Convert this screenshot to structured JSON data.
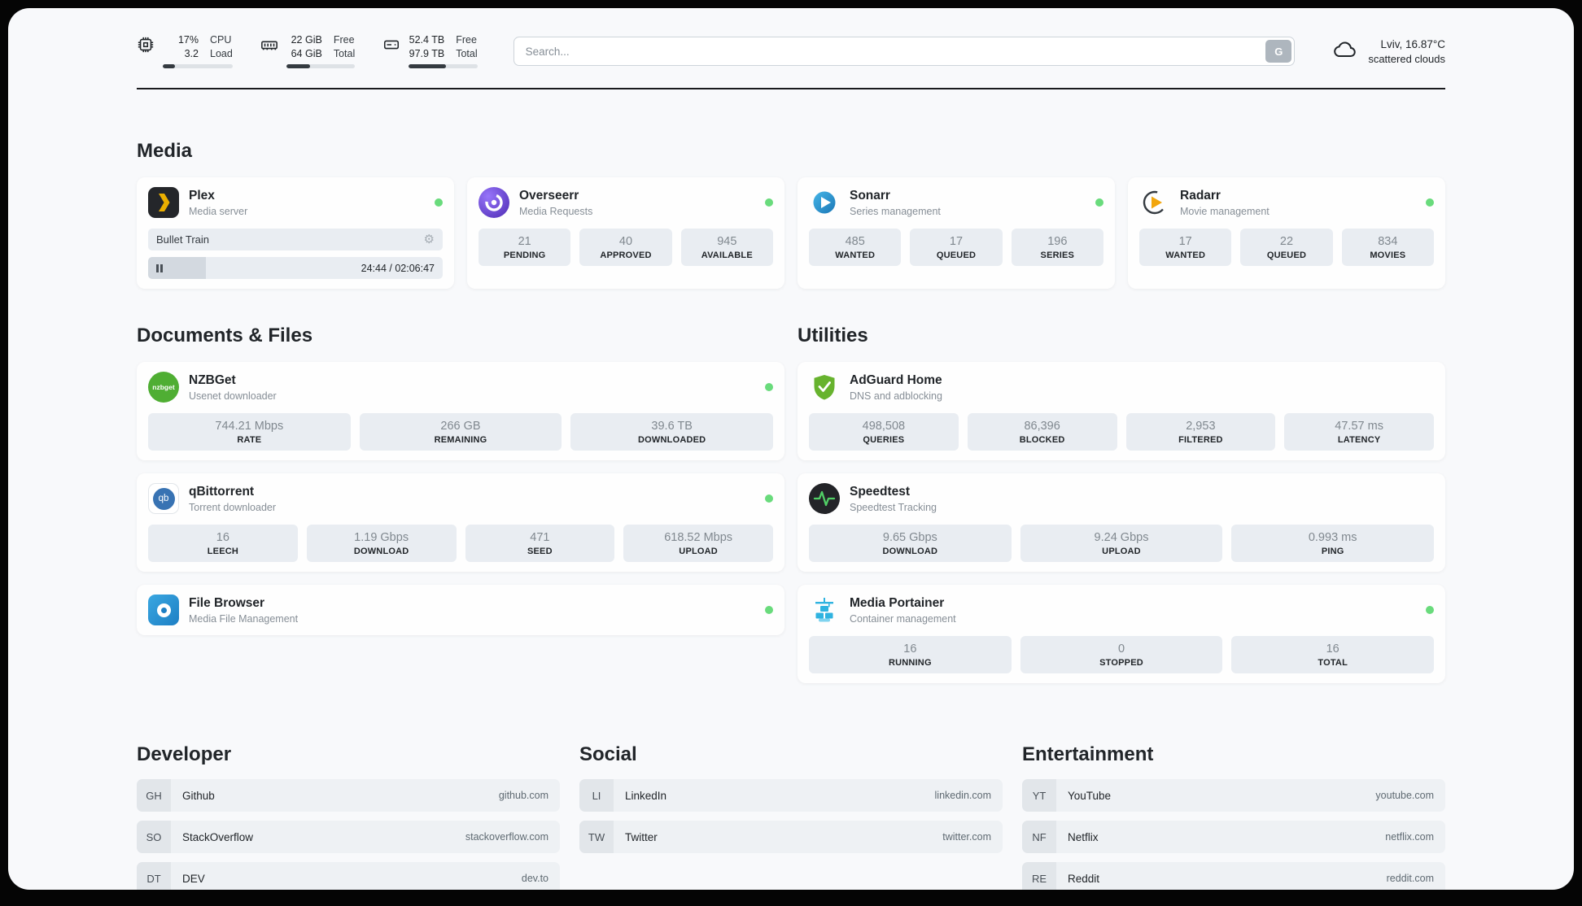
{
  "colors": {
    "status_online": "#69db7c",
    "accent_green": "#51cf66",
    "page_bg": "#f8f9fb",
    "stat_bg": "#e9edf2"
  },
  "topbar": {
    "metrics": [
      {
        "icon": "cpu-icon",
        "v1": "17%",
        "v2": "3.2",
        "l1": "CPU",
        "l2": "Load",
        "percent": 17
      },
      {
        "icon": "ram-icon",
        "v1": "22 GiB",
        "v2": "64 GiB",
        "l1": "Free",
        "l2": "Total",
        "percent": 34
      },
      {
        "icon": "disk-icon",
        "v1": "52.4 TB",
        "v2": "97.9 TB",
        "l1": "Free",
        "l2": "Total",
        "percent": 54
      }
    ],
    "search": {
      "placeholder": "Search...",
      "button_label": "G"
    },
    "weather": {
      "location": "Lviv, 16.87°C",
      "condition": "scattered clouds"
    }
  },
  "sections": {
    "media": {
      "title": "Media",
      "plex": {
        "name": "Plex",
        "desc": "Media server",
        "now_playing": "Bullet Train",
        "time": "24:44 / 02:06:47",
        "progress_percent": 19.5
      },
      "overseerr": {
        "name": "Overseerr",
        "desc": "Media Requests",
        "stats": [
          {
            "value": "21",
            "label": "PENDING"
          },
          {
            "value": "40",
            "label": "APPROVED"
          },
          {
            "value": "945",
            "label": "AVAILABLE"
          }
        ]
      },
      "sonarr": {
        "name": "Sonarr",
        "desc": "Series management",
        "stats": [
          {
            "value": "485",
            "label": "WANTED"
          },
          {
            "value": "17",
            "label": "QUEUED"
          },
          {
            "value": "196",
            "label": "SERIES"
          }
        ]
      },
      "radarr": {
        "name": "Radarr",
        "desc": "Movie management",
        "stats": [
          {
            "value": "17",
            "label": "WANTED"
          },
          {
            "value": "22",
            "label": "QUEUED"
          },
          {
            "value": "834",
            "label": "MOVIES"
          }
        ]
      }
    },
    "documents": {
      "title": "Documents & Files",
      "nzbget": {
        "name": "NZBGet",
        "desc": "Usenet downloader",
        "icon_text": "nzbget",
        "stats": [
          {
            "value": "744.21 Mbps",
            "label": "RATE"
          },
          {
            "value": "266 GB",
            "label": "REMAINING"
          },
          {
            "value": "39.6 TB",
            "label": "DOWNLOADED"
          }
        ]
      },
      "qbittorrent": {
        "name": "qBittorrent",
        "desc": "Torrent downloader",
        "icon_text": "qb",
        "stats": [
          {
            "value": "16",
            "label": "LEECH"
          },
          {
            "value": "1.19 Gbps",
            "label": "DOWNLOAD"
          },
          {
            "value": "471",
            "label": "SEED"
          },
          {
            "value": "618.52 Mbps",
            "label": "UPLOAD"
          }
        ]
      },
      "filebrowser": {
        "name": "File Browser",
        "desc": "Media File Management"
      }
    },
    "utilities": {
      "title": "Utilities",
      "adguard": {
        "name": "AdGuard Home",
        "desc": "DNS and adblocking",
        "stats": [
          {
            "value": "498,508",
            "label": "QUERIES"
          },
          {
            "value": "86,396",
            "label": "BLOCKED"
          },
          {
            "value": "2,953",
            "label": "FILTERED"
          },
          {
            "value": "47.57 ms",
            "label": "LATENCY"
          }
        ]
      },
      "speedtest": {
        "name": "Speedtest",
        "desc": "Speedtest Tracking",
        "stats": [
          {
            "value": "9.65 Gbps",
            "label": "DOWNLOAD"
          },
          {
            "value": "9.24 Gbps",
            "label": "UPLOAD"
          },
          {
            "value": "0.993 ms",
            "label": "PING"
          }
        ]
      },
      "portainer": {
        "name": "Media Portainer",
        "desc": "Container management",
        "stats": [
          {
            "value": "16",
            "label": "RUNNING"
          },
          {
            "value": "0",
            "label": "STOPPED"
          },
          {
            "value": "16",
            "label": "TOTAL"
          }
        ]
      }
    },
    "bookmarks": [
      {
        "title": "Developer",
        "links": [
          {
            "abbr": "GH",
            "name": "Github",
            "domain": "github.com"
          },
          {
            "abbr": "SO",
            "name": "StackOverflow",
            "domain": "stackoverflow.com"
          },
          {
            "abbr": "DT",
            "name": "DEV",
            "domain": "dev.to"
          }
        ]
      },
      {
        "title": "Social",
        "links": [
          {
            "abbr": "LI",
            "name": "LinkedIn",
            "domain": "linkedin.com"
          },
          {
            "abbr": "TW",
            "name": "Twitter",
            "domain": "twitter.com"
          }
        ]
      },
      {
        "title": "Entertainment",
        "links": [
          {
            "abbr": "YT",
            "name": "YouTube",
            "domain": "youtube.com"
          },
          {
            "abbr": "NF",
            "name": "Netflix",
            "domain": "netflix.com"
          },
          {
            "abbr": "RE",
            "name": "Reddit",
            "domain": "reddit.com"
          }
        ]
      }
    ]
  }
}
